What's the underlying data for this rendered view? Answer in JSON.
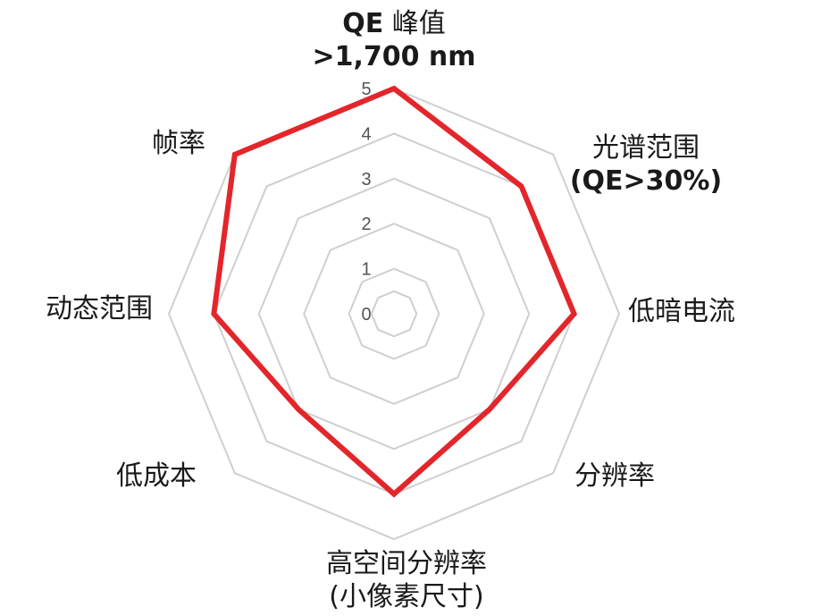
{
  "chart_data": {
    "type": "radar",
    "scale": {
      "min": 0,
      "max": 5,
      "ticks": [
        "0",
        "1",
        "2",
        "3",
        "4",
        "5"
      ]
    },
    "axes": [
      {
        "key": "qe_peak",
        "lines": [
          {
            "runs": [
              {
                "text": "QE",
                "bold": true
              },
              {
                "text": " 峰值",
                "bold": false
              }
            ]
          },
          {
            "runs": [
              {
                "text": ">1,700 nm",
                "bold": true
              }
            ]
          }
        ]
      },
      {
        "key": "spectral_range",
        "lines": [
          {
            "runs": [
              {
                "text": "光谱范围",
                "bold": false
              }
            ]
          },
          {
            "runs": [
              {
                "text": "(QE>30%)",
                "bold": true
              }
            ]
          }
        ]
      },
      {
        "key": "low_dark_current",
        "lines": [
          {
            "runs": [
              {
                "text": "低暗电流",
                "bold": false
              }
            ]
          }
        ]
      },
      {
        "key": "resolution",
        "lines": [
          {
            "runs": [
              {
                "text": "分辨率",
                "bold": false
              }
            ]
          }
        ]
      },
      {
        "key": "high_spatial_resolution",
        "lines": [
          {
            "runs": [
              {
                "text": "高空间分辨率",
                "bold": false
              }
            ]
          },
          {
            "runs": [
              {
                "text": "(小像素尺寸)",
                "bold": false
              }
            ]
          }
        ]
      },
      {
        "key": "low_cost",
        "lines": [
          {
            "runs": [
              {
                "text": "低成本",
                "bold": false
              }
            ]
          }
        ]
      },
      {
        "key": "dynamic_range",
        "lines": [
          {
            "runs": [
              {
                "text": "动态范围",
                "bold": false
              }
            ]
          }
        ]
      },
      {
        "key": "frame_rate",
        "lines": [
          {
            "runs": [
              {
                "text": "帧率",
                "bold": false
              }
            ]
          }
        ]
      }
    ],
    "series": [
      {
        "values": [
          5,
          4,
          4,
          3,
          4,
          3,
          4,
          5
        ],
        "color": "#e3262b"
      }
    ],
    "grid": true,
    "grid_color": "#cfcfcf"
  }
}
